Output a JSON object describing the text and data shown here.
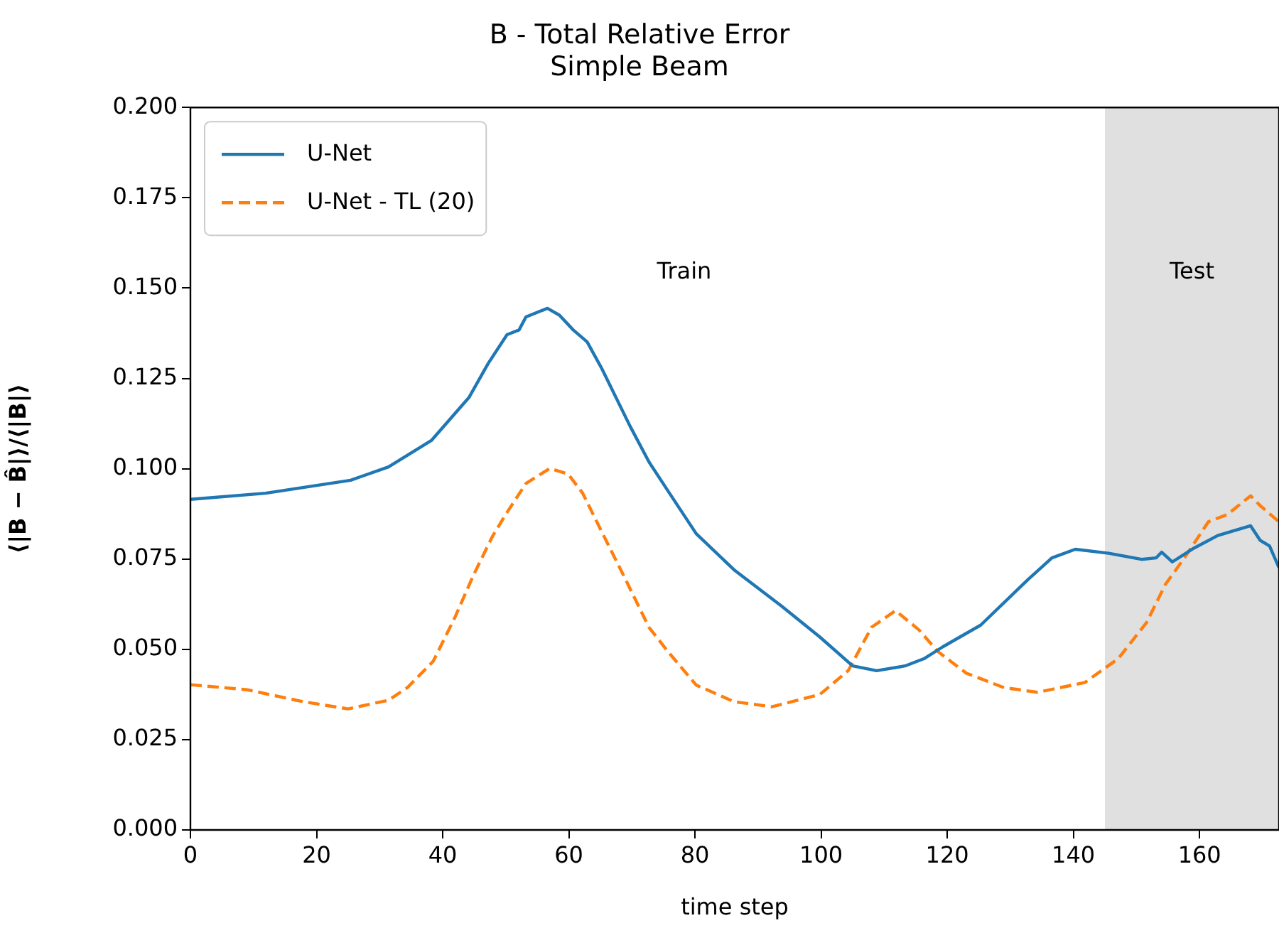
{
  "chart_data": {
    "type": "line",
    "title": "B - Total Relative Error",
    "subtitle": "Simple Beam",
    "xlabel": "time step",
    "ylabel": "⟨|B − B̂|⟩/⟨|B|⟩",
    "xlim": [
      0,
      172.6
    ],
    "xticks": [
      0,
      20,
      40,
      60,
      80,
      100,
      120,
      140,
      160
    ],
    "ylim": [
      0,
      0.2
    ],
    "yticks": [
      {
        "value": 0,
        "label": "0.000"
      },
      {
        "value": 0.025,
        "label": "0.025"
      },
      {
        "value": 0.05,
        "label": "0.050"
      },
      {
        "value": 0.075,
        "label": "0.075"
      },
      {
        "value": 0.1,
        "label": "0.100"
      },
      {
        "value": 0.125,
        "label": "0.125"
      },
      {
        "value": 0.15,
        "label": "0.150"
      },
      {
        "value": 0.175,
        "label": "0.175"
      },
      {
        "value": 0.2,
        "label": "0.200"
      }
    ],
    "grid": false,
    "legend": "top left",
    "marker": "none",
    "bands": [
      {
        "axis": "x",
        "from": 145,
        "to": 172.6,
        "label": "Test",
        "color": "#e0e0e0"
      }
    ],
    "annotations": [
      "Train"
    ],
    "series": [
      {
        "name": "U-Net",
        "color": "#1f77b4",
        "line_style": "solid",
        "x": [
          0,
          11.9,
          25.4,
          31.4,
          38.2,
          44.2,
          47.2,
          50.2,
          52.1,
          53.2,
          56.6,
          58.5,
          60.7,
          62.9,
          65.2,
          69.7,
          72.7,
          75.7,
          80.2,
          86.2,
          93.7,
          99.8,
          105,
          108.8,
          113.3,
          116.3,
          119.3,
          125.3,
          132.8,
          136.6,
          140.3,
          145.6,
          150.8,
          153.1,
          154,
          155.7,
          159.1,
          162.9,
          168.1,
          169.6,
          171.1,
          172.6
        ],
        "values": [
          0.0915,
          0.0932,
          0.0968,
          0.1005,
          0.1078,
          0.1198,
          0.1291,
          0.1371,
          0.1384,
          0.142,
          0.1444,
          0.1425,
          0.1384,
          0.1351,
          0.1278,
          0.1118,
          0.1019,
          0.0939,
          0.082,
          0.072,
          0.062,
          0.0534,
          0.0454,
          0.0441,
          0.0454,
          0.0474,
          0.0507,
          0.0567,
          0.0693,
          0.0753,
          0.0777,
          0.0766,
          0.0749,
          0.0753,
          0.0769,
          0.0742,
          0.078,
          0.0815,
          0.0842,
          0.0802,
          0.0786,
          0.0726
        ]
      },
      {
        "name": "U-Net - TL (20)",
        "color": "#ff7f0e",
        "line_style": "dashed",
        "x": [
          0,
          9,
          17.9,
          25,
          31.4,
          34.4,
          38.5,
          41.9,
          44.9,
          47.9,
          50.2,
          53.2,
          57,
          59.9,
          62.2,
          65.2,
          69,
          72.7,
          75.7,
          80.2,
          86.2,
          92.2,
          99.8,
          104.3,
          108,
          111.8,
          115.5,
          118.5,
          123,
          129,
          134.3,
          141.8,
          147.1,
          151.6,
          154.6,
          157.6,
          161.4,
          164.4,
          168.1,
          169.6,
          172.6
        ],
        "values": [
          0.0402,
          0.0388,
          0.0355,
          0.0335,
          0.0359,
          0.0394,
          0.0467,
          0.0587,
          0.0706,
          0.0813,
          0.0879,
          0.0959,
          0.1001,
          0.0985,
          0.0932,
          0.0826,
          0.0693,
          0.0561,
          0.0494,
          0.0401,
          0.0355,
          0.0341,
          0.0375,
          0.0441,
          0.0561,
          0.0607,
          0.0554,
          0.0494,
          0.0434,
          0.0394,
          0.0381,
          0.0408,
          0.0474,
          0.0574,
          0.068,
          0.0753,
          0.0853,
          0.0873,
          0.0925,
          0.0898,
          0.0853
        ]
      }
    ]
  }
}
